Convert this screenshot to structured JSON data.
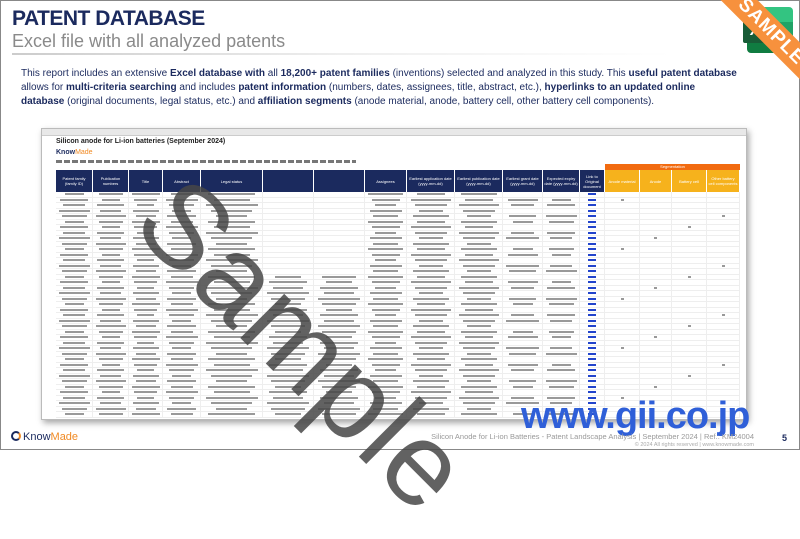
{
  "header": {
    "title": "PATENT DATABASE",
    "subtitle": "Excel file with all analyzed patents"
  },
  "intro": [
    {
      "t": "This report includes an extensive ",
      "b": false
    },
    {
      "t": "Excel database with",
      "b": true
    },
    {
      "t": " all ",
      "b": false
    },
    {
      "t": "18,200+ patent families",
      "b": true
    },
    {
      "t": " (inventions) selected and analyzed in this study. This ",
      "b": false
    },
    {
      "t": "useful patent database",
      "b": true
    },
    {
      "t": " allows for ",
      "b": false
    },
    {
      "t": "multi-criteria searching",
      "b": true
    },
    {
      "t": " and includes ",
      "b": false
    },
    {
      "t": "patent information",
      "b": true
    },
    {
      "t": " (numbers, dates, assignees, title, abstract, etc.), ",
      "b": false
    },
    {
      "t": "hyperlinks to an updated online database",
      "b": true
    },
    {
      "t": " (original documents, legal status, etc.) and ",
      "b": false
    },
    {
      "t": "affiliation segments",
      "b": true
    },
    {
      "t": " (anode material, anode, battery cell, other battery cell components).",
      "b": false
    }
  ],
  "sheet": {
    "title": "Silicon anode for Li-ion batteries (September 2024)",
    "logo": {
      "a": "Know",
      "b": "Made"
    },
    "segment_header": "Segmentation",
    "columns": [
      "Patent family (family ID)",
      "Publication numbers",
      "Title",
      "Abstract",
      "Legal status",
      "",
      "",
      "Assignees",
      "Earliest application date (yyyy-mm-dd)",
      "Earliest publication date (yyyy-mm-dd)",
      "Earliest grant date (yyyy-mm-dd)",
      "Expected expiry date (yyyy-mm-dd)",
      "Link to Original document",
      "Anode material",
      "Anode",
      "Battery cell",
      "Other battery cell components"
    ]
  },
  "watermark": "Sample",
  "ribbon": "SAMPLE",
  "gii": "www.gii.co.jp",
  "footer": {
    "logo_a": "Know",
    "logo_b": "Made",
    "reference": "Silicon Anode for Li-ion Batteries - Patent Landscape Analysis | September 2024 | Ref.: KM24004",
    "copyright": "© 2024 All rights reserved | www.knowmade.com",
    "page": "5"
  },
  "colors": {
    "navy": "#1b2a5e",
    "orange": "#f26b10",
    "yellow": "#f6b21c",
    "excel_green": "#107c41"
  }
}
